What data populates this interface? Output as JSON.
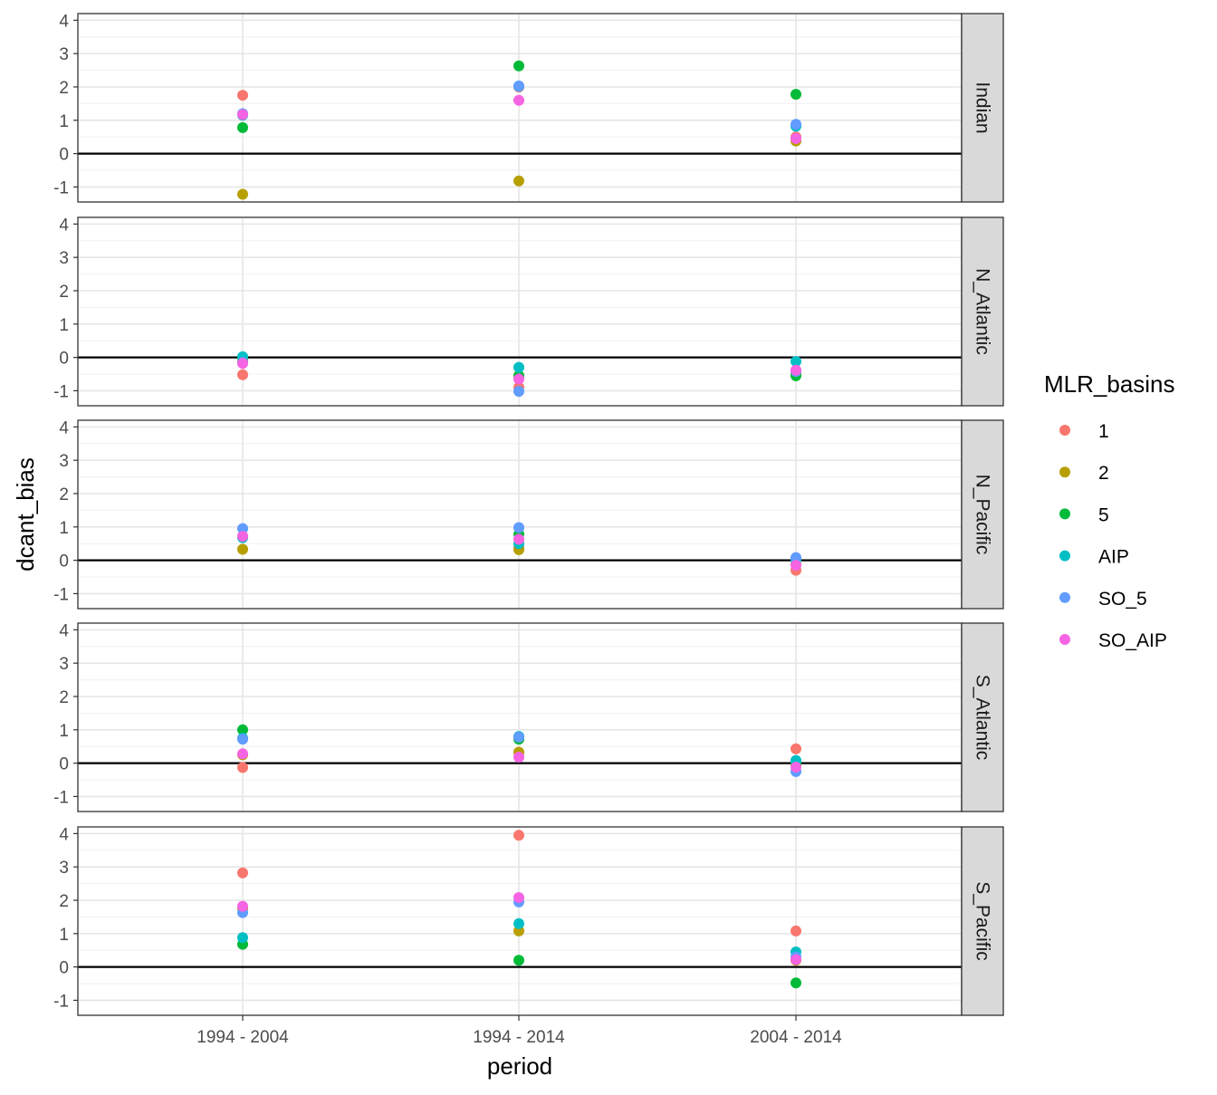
{
  "chart_data": {
    "type": "scatter",
    "xlabel": "period",
    "ylabel": "dcant_bias",
    "categories": [
      "1994 - 2004",
      "1994 - 2014",
      "2004 - 2014"
    ],
    "ylim": [
      -1.45,
      4.2
    ],
    "y_ticks": [
      "-1",
      "0",
      "1",
      "2",
      "3",
      "4"
    ],
    "grid": true,
    "reference_line_y": 0,
    "legend": {
      "title": "MLR_basins",
      "position": "right",
      "entries": [
        {
          "label": "1",
          "color": "#F8766D"
        },
        {
          "label": "2",
          "color": "#B79F00"
        },
        {
          "label": "5",
          "color": "#00BA38"
        },
        {
          "label": "AIP",
          "color": "#00BFC4"
        },
        {
          "label": "SO_5",
          "color": "#619CFF"
        },
        {
          "label": "SO_AIP",
          "color": "#F564E3"
        }
      ]
    },
    "facets": [
      {
        "name": "Indian",
        "series": [
          {
            "name": "1",
            "values": [
              1.75,
              2.0,
              0.5
            ]
          },
          {
            "name": "2",
            "values": [
              -1.22,
              -0.82,
              0.38
            ]
          },
          {
            "name": "5",
            "values": [
              0.78,
              2.63,
              1.78
            ]
          },
          {
            "name": "AIP",
            "values": [
              1.15,
              2.02,
              0.82
            ]
          },
          {
            "name": "SO_5",
            "values": [
              1.2,
              2.03,
              0.88
            ]
          },
          {
            "name": "SO_AIP",
            "values": [
              1.17,
              1.6,
              0.45
            ]
          }
        ]
      },
      {
        "name": "N_Atlantic",
        "series": [
          {
            "name": "1",
            "values": [
              -0.52,
              -0.9,
              -0.45
            ]
          },
          {
            "name": "2",
            "values": [
              -0.08,
              -0.55,
              -0.5
            ]
          },
          {
            "name": "5",
            "values": [
              0.0,
              -0.55,
              -0.55
            ]
          },
          {
            "name": "AIP",
            "values": [
              0.02,
              -0.3,
              -0.12
            ]
          },
          {
            "name": "SO_5",
            "values": [
              -0.15,
              -1.02,
              -0.42
            ]
          },
          {
            "name": "SO_AIP",
            "values": [
              -0.18,
              -0.65,
              -0.38
            ]
          }
        ]
      },
      {
        "name": "N_Pacific",
        "series": [
          {
            "name": "1",
            "values": [
              0.72,
              0.38,
              -0.3
            ]
          },
          {
            "name": "2",
            "values": [
              0.33,
              0.32,
              -0.12
            ]
          },
          {
            "name": "5",
            "values": [
              0.7,
              0.78,
              0.05
            ]
          },
          {
            "name": "AIP",
            "values": [
              0.68,
              0.5,
              0.02
            ]
          },
          {
            "name": "SO_5",
            "values": [
              0.95,
              0.98,
              0.08
            ]
          },
          {
            "name": "SO_AIP",
            "values": [
              0.72,
              0.63,
              -0.15
            ]
          }
        ]
      },
      {
        "name": "S_Atlantic",
        "series": [
          {
            "name": "1",
            "values": [
              -0.13,
              0.32,
              0.43
            ]
          },
          {
            "name": "2",
            "values": [
              0.25,
              0.33,
              -0.05
            ]
          },
          {
            "name": "5",
            "values": [
              1.0,
              0.72,
              0.0
            ]
          },
          {
            "name": "AIP",
            "values": [
              0.75,
              0.8,
              0.08
            ]
          },
          {
            "name": "SO_5",
            "values": [
              0.72,
              0.78,
              -0.25
            ]
          },
          {
            "name": "SO_AIP",
            "values": [
              0.28,
              0.18,
              -0.12
            ]
          }
        ]
      },
      {
        "name": "S_Pacific",
        "series": [
          {
            "name": "1",
            "values": [
              2.82,
              3.95,
              1.08
            ]
          },
          {
            "name": "2",
            "values": [
              1.75,
              1.08,
              0.2
            ]
          },
          {
            "name": "5",
            "values": [
              0.68,
              0.2,
              -0.48
            ]
          },
          {
            "name": "AIP",
            "values": [
              0.88,
              1.3,
              0.45
            ]
          },
          {
            "name": "SO_5",
            "values": [
              1.63,
              1.95,
              0.3
            ]
          },
          {
            "name": "SO_AIP",
            "values": [
              1.82,
              2.08,
              0.22
            ]
          }
        ]
      }
    ]
  }
}
